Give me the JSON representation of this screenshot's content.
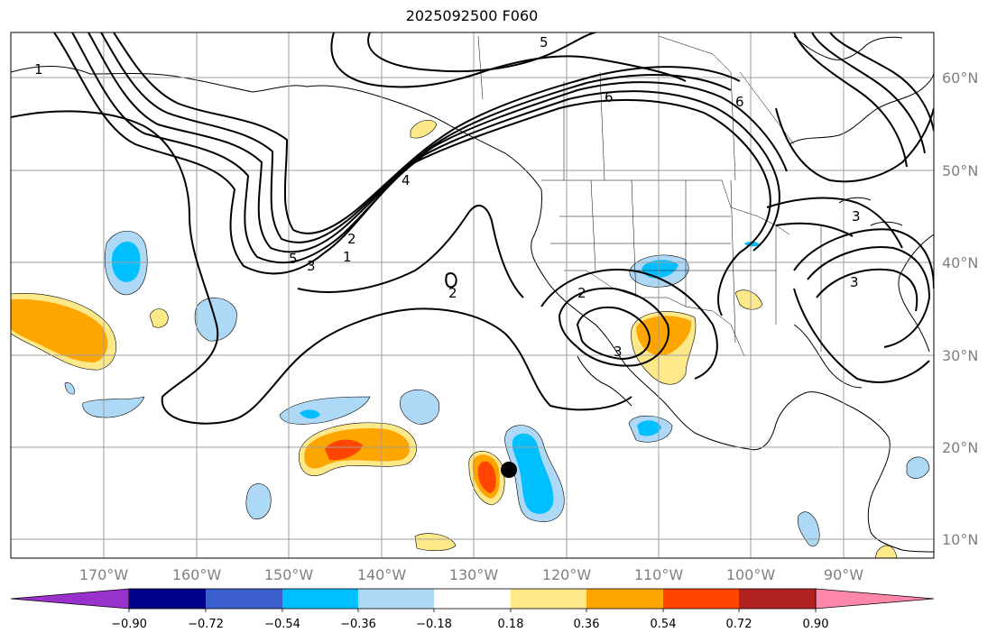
{
  "title": "2025092500 F060",
  "lon_ticks": [
    "170°W",
    "160°W",
    "150°W",
    "140°W",
    "130°W",
    "120°W",
    "110°W",
    "100°W",
    "90°W"
  ],
  "lat_ticks": [
    "60°N",
    "50°N",
    "40°N",
    "30°N",
    "20°N",
    "10°N"
  ],
  "colorbar": {
    "ticks": [
      "−0.90",
      "−0.72",
      "−0.54",
      "−0.36",
      "−0.18",
      "0.18",
      "0.36",
      "0.54",
      "0.72",
      "0.90"
    ],
    "colors": [
      "#9932cc",
      "#00008b",
      "#3a5fcd",
      "#00bfff",
      "#add8f6",
      "#ffffff",
      "#fee98a",
      "#ffa500",
      "#ff4500",
      "#b22222",
      "#ff88aa"
    ]
  },
  "contour_labels": [
    "1",
    "5",
    "6",
    "6",
    "4",
    "5",
    "3",
    "1",
    "2",
    "2",
    "3",
    "2",
    "3",
    "3"
  ]
}
